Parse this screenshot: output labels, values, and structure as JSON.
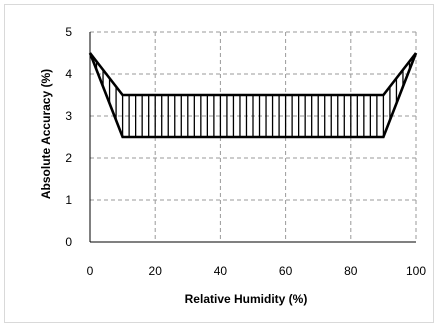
{
  "chart_data": {
    "type": "line",
    "title": "",
    "xlabel": "Relative Humidity (%)",
    "ylabel": "Absolute Accuracy (%)",
    "xlim": [
      0,
      100
    ],
    "ylim": [
      0,
      5
    ],
    "xticks": [
      0,
      20,
      40,
      60,
      80,
      100
    ],
    "yticks": [
      0,
      1,
      2,
      3,
      4,
      5
    ],
    "grid": true,
    "legend": "none",
    "series": [
      {
        "x": [
          0,
          10,
          90,
          100
        ],
        "y": [
          4.5,
          3.5,
          3.5,
          4.5
        ]
      },
      {
        "x": [
          0,
          10,
          90,
          100
        ],
        "y": [
          4.5,
          2.5,
          2.5,
          4.5
        ]
      }
    ],
    "hatch": {
      "x": [
        2,
        4,
        6,
        8,
        10,
        12,
        14,
        16,
        18,
        20,
        22,
        24,
        26,
        28,
        30,
        32,
        34,
        36,
        38,
        40,
        42,
        44,
        46,
        48,
        50,
        52,
        54,
        56,
        58,
        60,
        62,
        64,
        66,
        68,
        70,
        72,
        74,
        76,
        78,
        80,
        82,
        84,
        86,
        88,
        90,
        92,
        94,
        96,
        98
      ],
      "step_labelled": false
    },
    "colors": {
      "line": "#000000",
      "grid": "#9a9a9a"
    }
  }
}
